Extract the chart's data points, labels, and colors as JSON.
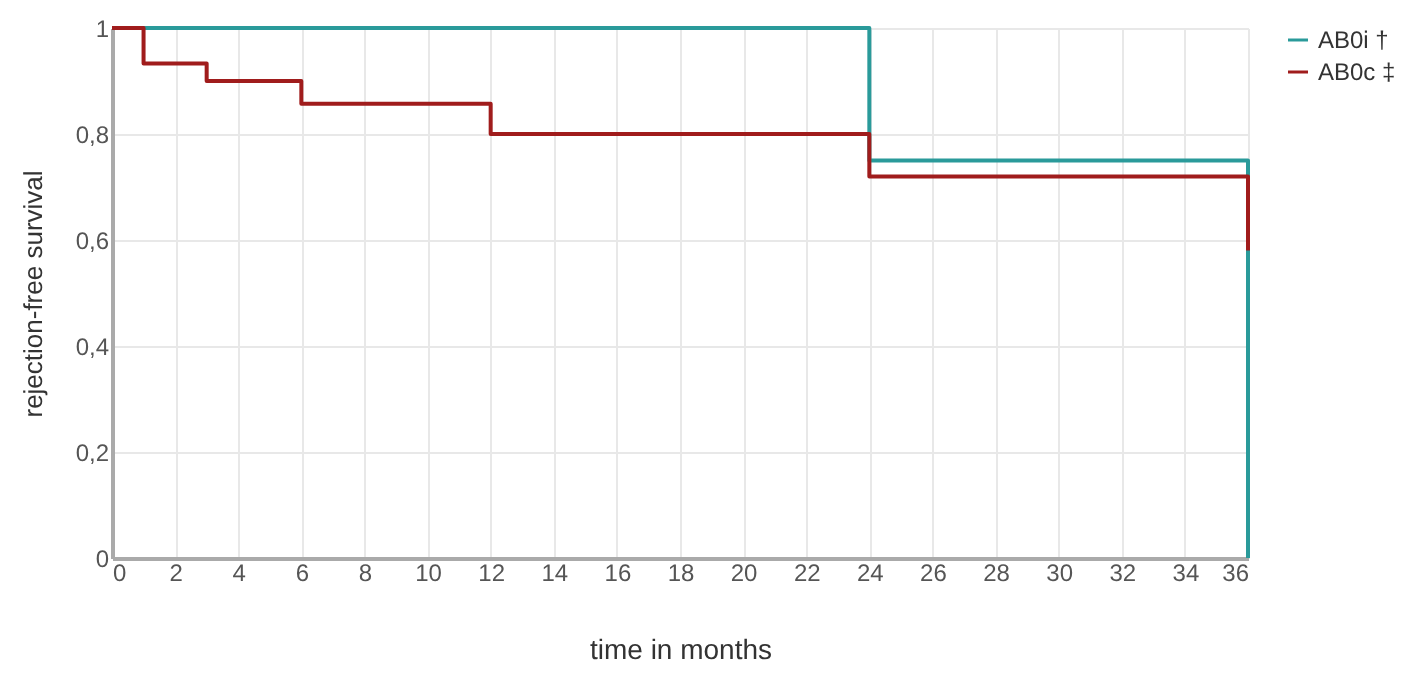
{
  "chart_data": {
    "type": "step",
    "xlabel": "time in months",
    "ylabel": "rejection-free survival",
    "series": [
      {
        "name": "AB0i †",
        "color": "#2a9a9a",
        "x": [
          0,
          24,
          36,
          36
        ],
        "values": [
          1,
          0.75,
          0.75,
          0
        ]
      },
      {
        "name": "AB0c ‡",
        "color": "#a01c1c",
        "x": [
          0,
          1,
          3,
          6,
          12,
          24,
          36,
          36
        ],
        "values": [
          1,
          0.933,
          0.9,
          0.857,
          0.8,
          0.72,
          0.72,
          0.58
        ]
      }
    ],
    "xlim": [
      0,
      36
    ],
    "xticks": [
      0,
      2,
      4,
      6,
      8,
      10,
      12,
      14,
      16,
      18,
      20,
      22,
      24,
      26,
      28,
      30,
      32,
      34,
      36
    ],
    "ylim": [
      0,
      1
    ],
    "yticks": [
      0,
      {
        "value": 0.2,
        "label": "0,2"
      },
      {
        "value": 0.4,
        "label": "0,4"
      },
      {
        "value": 0.6,
        "label": "0,6"
      },
      {
        "value": 0.8,
        "label": "0,8"
      },
      1
    ],
    "grid": true,
    "legend": "top right"
  }
}
